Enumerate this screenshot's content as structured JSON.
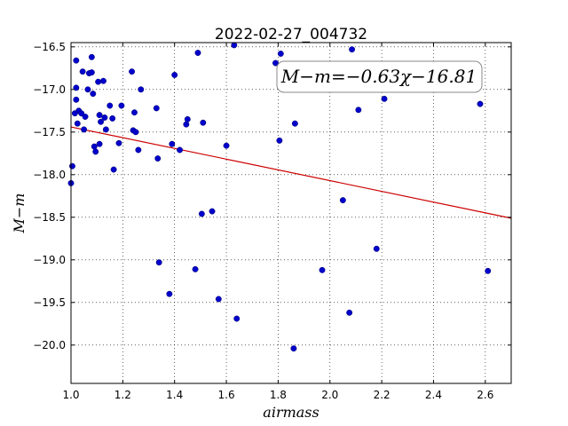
{
  "chart_data": {
    "type": "scatter",
    "title": "2022-02-27_004732",
    "xlabel": "airmass",
    "ylabel": "M−m",
    "xlim": [
      1.0,
      2.7
    ],
    "ylim": [
      -20.45,
      -16.45
    ],
    "y_inverted": true,
    "grid": true,
    "x_ticks": [
      "1.0",
      "1.2",
      "1.4",
      "1.6",
      "1.8",
      "2.0",
      "2.2",
      "2.4",
      "2.6"
    ],
    "y_ticks": [
      "−16.5",
      "−17.0",
      "−17.5",
      "−18.0",
      "−18.5",
      "−19.0",
      "−19.5",
      "−20.0"
    ],
    "annotation": "M−m=−0.63χ−16.81",
    "fit": {
      "slope": -0.63,
      "intercept": -16.81,
      "color": "#cc0000"
    },
    "marker_color": "#0000cc",
    "points": [
      [
        1.0,
        -18.1
      ],
      [
        1.005,
        -17.9
      ],
      [
        1.015,
        -17.28
      ],
      [
        1.02,
        -16.66
      ],
      [
        1.02,
        -16.98
      ],
      [
        1.02,
        -17.12
      ],
      [
        1.025,
        -17.4
      ],
      [
        1.03,
        -17.25
      ],
      [
        1.04,
        -17.28
      ],
      [
        1.045,
        -16.79
      ],
      [
        1.05,
        -17.47
      ],
      [
        1.055,
        -17.32
      ],
      [
        1.065,
        -17.0
      ],
      [
        1.07,
        -16.81
      ],
      [
        1.08,
        -16.62
      ],
      [
        1.08,
        -16.8
      ],
      [
        1.085,
        -17.05
      ],
      [
        1.09,
        -17.67
      ],
      [
        1.095,
        -17.73
      ],
      [
        1.105,
        -16.91
      ],
      [
        1.11,
        -17.3
      ],
      [
        1.11,
        -17.64
      ],
      [
        1.115,
        -17.38
      ],
      [
        1.125,
        -16.9
      ],
      [
        1.13,
        -17.33
      ],
      [
        1.135,
        -17.47
      ],
      [
        1.15,
        -17.19
      ],
      [
        1.16,
        -17.34
      ],
      [
        1.165,
        -17.94
      ],
      [
        1.185,
        -17.63
      ],
      [
        1.195,
        -17.19
      ],
      [
        1.235,
        -16.79
      ],
      [
        1.24,
        -17.48
      ],
      [
        1.245,
        -17.27
      ],
      [
        1.25,
        -17.5
      ],
      [
        1.26,
        -17.71
      ],
      [
        1.27,
        -17.0
      ],
      [
        1.33,
        -17.22
      ],
      [
        1.335,
        -17.81
      ],
      [
        1.34,
        -19.03
      ],
      [
        1.38,
        -19.4
      ],
      [
        1.39,
        -17.64
      ],
      [
        1.4,
        -16.83
      ],
      [
        1.42,
        -17.71
      ],
      [
        1.445,
        -17.41
      ],
      [
        1.45,
        -17.35
      ],
      [
        1.48,
        -19.11
      ],
      [
        1.49,
        -16.57
      ],
      [
        1.505,
        -18.46
      ],
      [
        1.51,
        -17.39
      ],
      [
        1.545,
        -18.43
      ],
      [
        1.57,
        -19.46
      ],
      [
        1.6,
        -17.66
      ],
      [
        1.63,
        -16.48
      ],
      [
        1.64,
        -19.69
      ],
      [
        1.79,
        -16.69
      ],
      [
        1.805,
        -17.6
      ],
      [
        1.81,
        -16.58
      ],
      [
        1.86,
        -20.04
      ],
      [
        1.865,
        -17.4
      ],
      [
        1.97,
        -19.12
      ],
      [
        2.05,
        -18.3
      ],
      [
        2.075,
        -19.62
      ],
      [
        2.085,
        -16.53
      ],
      [
        2.11,
        -17.24
      ],
      [
        2.18,
        -18.87
      ],
      [
        2.21,
        -17.11
      ],
      [
        2.58,
        -17.17
      ],
      [
        2.61,
        -19.13
      ]
    ]
  }
}
